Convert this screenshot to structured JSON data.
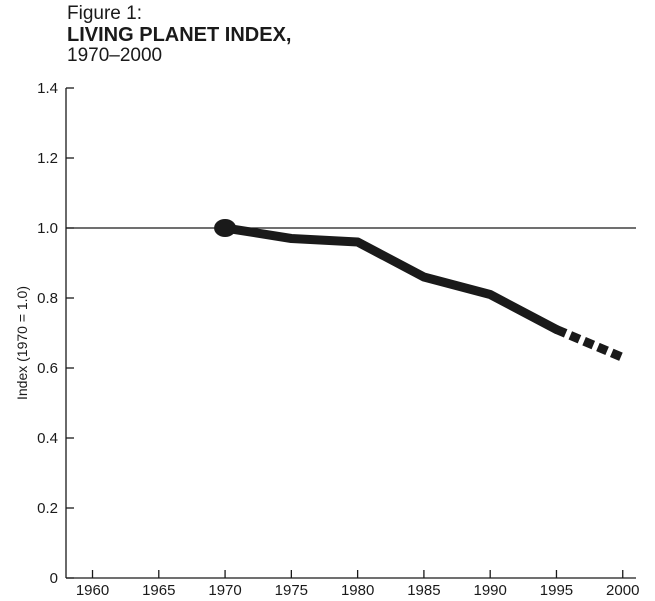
{
  "figure": {
    "label": "Figure 1:",
    "title": "LIVING PLANET INDEX,",
    "subtitle": "1970–2000"
  },
  "chart_data": {
    "type": "line",
    "title": "LIVING PLANET INDEX, 1970–2000",
    "xlabel": "",
    "ylabel": "Index (1970 = 1.0)",
    "xlim": [
      1958,
      2001
    ],
    "ylim": [
      0,
      1.4
    ],
    "x_ticks": [
      1960,
      1965,
      1970,
      1975,
      1980,
      1985,
      1990,
      1995,
      2000
    ],
    "y_ticks": [
      0,
      0.2,
      0.4,
      0.6,
      0.8,
      1.0,
      1.2,
      1.4
    ],
    "y_tick_labels": [
      "0",
      "0.2",
      "0.4",
      "0.6",
      "0.8",
      "1.0",
      "1.2",
      "1.4"
    ],
    "reference_line": 1.0,
    "grid": false,
    "series": [
      {
        "style": "solid",
        "color": "#1a1a1a",
        "points": [
          [
            1970,
            1.0
          ],
          [
            1975,
            0.97
          ],
          [
            1980,
            0.96
          ],
          [
            1985,
            0.86
          ],
          [
            1990,
            0.81
          ],
          [
            1995,
            0.71
          ]
        ]
      },
      {
        "style": "dashed",
        "color": "#1a1a1a",
        "points": [
          [
            1995,
            0.71
          ],
          [
            2000,
            0.63
          ]
        ]
      }
    ],
    "start_marker": [
      1970,
      1.0
    ]
  }
}
